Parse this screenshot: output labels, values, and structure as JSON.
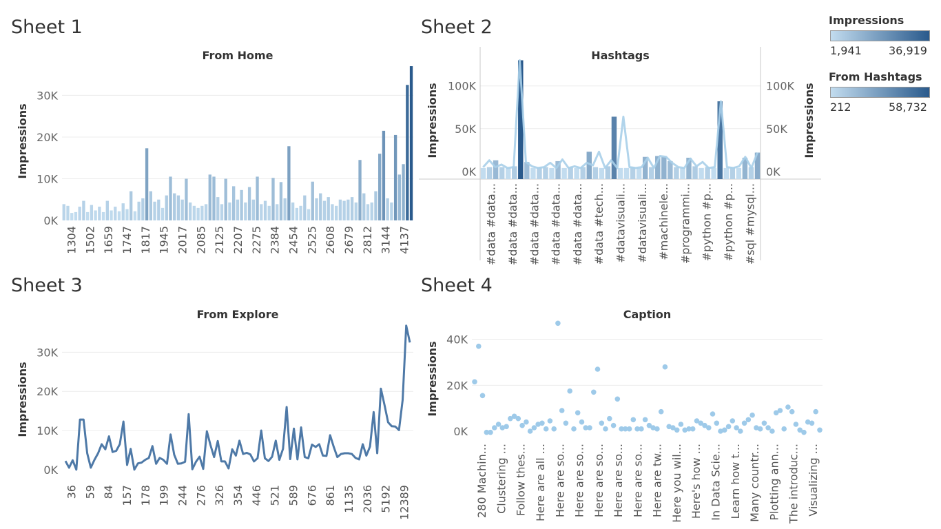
{
  "sheets": [
    {
      "title": "Sheet 1"
    },
    {
      "title": "Sheet 2"
    },
    {
      "title": "Sheet 3"
    },
    {
      "title": "Sheet 4"
    }
  ],
  "legends": [
    {
      "title": "Impressions",
      "min": "1,941",
      "max": "36,919",
      "color_low": "#c2dcef",
      "color_high": "#2a5a8c"
    },
    {
      "title": "From Hashtags",
      "min": "212",
      "max": "58,732",
      "color_low": "#c2dcef",
      "color_high": "#2a5a8c"
    }
  ],
  "chart_data": [
    {
      "type": "bar",
      "title": "From Home",
      "ylabel": "Impressions",
      "ylim": [
        0,
        38000
      ],
      "yticks": [
        {
          "v": 0,
          "label": "0K"
        },
        {
          "v": 10000,
          "label": "10K"
        },
        {
          "v": 20000,
          "label": "20K"
        },
        {
          "v": 30000,
          "label": "30K"
        }
      ],
      "tick_labels": [
        "1304",
        "1502",
        "1659",
        "1747",
        "1817",
        "1945",
        "2017",
        "2085",
        "2125",
        "2207",
        "2275",
        "2384",
        "2454",
        "2525",
        "2608",
        "2679",
        "2812",
        "3144",
        "4137"
      ],
      "values": [
        3900,
        3500,
        1800,
        2000,
        3300,
        4700,
        2000,
        3700,
        2400,
        3300,
        2000,
        4700,
        2400,
        3300,
        2200,
        4100,
        2700,
        7000,
        2200,
        4500,
        5300,
        17300,
        7000,
        4500,
        5000,
        3000,
        6000,
        10500,
        6500,
        6000,
        5000,
        10000,
        4300,
        3500,
        3000,
        3500,
        3900,
        11000,
        10500,
        5600,
        3900,
        10000,
        4300,
        8200,
        5000,
        7300,
        4300,
        8000,
        5000,
        10500,
        3900,
        4700,
        3500,
        10200,
        3900,
        9200,
        5300,
        17800,
        4300,
        3000,
        3500,
        6000,
        2700,
        9300,
        5300,
        6500,
        4700,
        5600,
        3900,
        3500,
        5000,
        4700,
        5000,
        5600,
        4300,
        14500,
        6500,
        3900,
        4300,
        7000,
        16000,
        21500,
        5300,
        4300,
        20500,
        11000,
        13500,
        32500,
        37000
      ],
      "colors": "impressions"
    },
    {
      "type": "bar+line",
      "title": "Hashtags",
      "ylabel": "Impressions",
      "ylabel_right": "Impressions",
      "ylim": [
        -9000,
        128000
      ],
      "yticks": [
        {
          "v": 0,
          "label": "0K"
        },
        {
          "v": 50000,
          "label": "50K"
        },
        {
          "v": 100000,
          "label": "100K"
        }
      ],
      "tick_labels": [
        "#data #data...",
        "#data #data...",
        "#data #data...",
        "#data #data...",
        "#data #data...",
        "#data #tech...",
        "#datavisuali...",
        "#datavisuali...",
        "#machinele...",
        "#programmi...",
        "#python #p...",
        "#python #p...",
        "#sql #mysql..."
      ],
      "bars": [
        4000,
        5000,
        13000,
        5000,
        4000,
        6000,
        130000,
        11000,
        4000,
        5000,
        5000,
        4000,
        12000,
        4000,
        5000,
        4000,
        5000,
        23000,
        5000,
        4000,
        6000,
        64000,
        4000,
        4000,
        5000,
        4000,
        17000,
        5000,
        18000,
        17000,
        12000,
        5000,
        4000,
        16000,
        6000,
        4000,
        5000,
        4000,
        82000,
        4000,
        5000,
        4000,
        16000,
        5000,
        22000
      ],
      "line": [
        5000,
        13000,
        5000,
        8000,
        4000,
        5000,
        130000,
        11000,
        6000,
        4000,
        5000,
        10000,
        4000,
        14000,
        4000,
        6000,
        4000,
        10000,
        7000,
        23000,
        4000,
        13000,
        4000,
        64000,
        5000,
        4000,
        5000,
        16000,
        4000,
        18000,
        17000,
        10000,
        5000,
        4000,
        15000,
        6000,
        11000,
        4000,
        5000,
        82000,
        5000,
        4000,
        6000,
        17000,
        4000,
        22000
      ],
      "colors": "hashtags"
    },
    {
      "type": "line",
      "title": "From Explore",
      "ylabel": "Impressions",
      "ylim": [
        -2500,
        38000
      ],
      "yticks": [
        {
          "v": 0,
          "label": "0K"
        },
        {
          "v": 10000,
          "label": "10K"
        },
        {
          "v": 20000,
          "label": "20K"
        },
        {
          "v": 30000,
          "label": "30K"
        }
      ],
      "tick_labels": [
        "36",
        "59",
        "84",
        "157",
        "178",
        "199",
        "244",
        "276",
        "326",
        "354",
        "446",
        "521",
        "589",
        "676",
        "861",
        "1135",
        "2036",
        "5192",
        "12389"
      ],
      "values": [
        2200,
        500,
        2400,
        0,
        12800,
        12800,
        4200,
        500,
        2500,
        4200,
        6500,
        5200,
        8500,
        4500,
        4800,
        6500,
        12300,
        1200,
        5300,
        0,
        1600,
        1800,
        2500,
        3000,
        6000,
        1500,
        3000,
        2500,
        1500,
        9000,
        3800,
        1500,
        1600,
        2000,
        14200,
        100,
        2000,
        3300,
        200,
        9800,
        6300,
        3200,
        7300,
        2100,
        2100,
        300,
        5200,
        3600,
        7400,
        4000,
        4300,
        3900,
        2100,
        2900,
        10000,
        2900,
        2200,
        3300,
        7400,
        2500,
        5300,
        16000,
        2700,
        10500,
        2600,
        10800,
        3200,
        2900,
        6400,
        5800,
        6500,
        3600,
        3500,
        8800,
        5800,
        3200,
        4000,
        4200,
        4200,
        4000,
        3000,
        2600,
        6500,
        3600,
        5900,
        14700,
        4200,
        20700,
        16500,
        12100,
        11100,
        11000,
        10100,
        17800,
        36800,
        32500
      ],
      "colors": "line"
    },
    {
      "type": "scatter",
      "title": "Caption",
      "ylabel": "Impressions",
      "ylim": [
        -3000,
        48000
      ],
      "yticks": [
        {
          "v": 0,
          "label": "0K"
        },
        {
          "v": 20000,
          "label": "20K"
        },
        {
          "v": 40000,
          "label": "40K"
        }
      ],
      "tick_labels": [
        "280 Machin...",
        "Clustering ...",
        "Follow thes...",
        "Here are all ...",
        "Here are so...",
        "Here are so...",
        "Here are so...",
        "Here are so...",
        "Here are so...",
        "Here are tw...",
        "Here you wil...",
        "Here's how ...",
        "In Data Scie...",
        "Learn how t...",
        "Many countr...",
        "Plotting ann...",
        "The introduc...",
        "Visualizing ..."
      ],
      "values": [
        21500,
        37000,
        15500,
        -500,
        -500,
        1500,
        3000,
        1500,
        2000,
        5500,
        6500,
        5500,
        2500,
        4000,
        0,
        1500,
        3000,
        3500,
        1000,
        4500,
        1000,
        47000,
        9000,
        3500,
        17500,
        1000,
        8000,
        4000,
        1500,
        1500,
        17000,
        27000,
        3500,
        1000,
        5500,
        2500,
        14000,
        1000,
        1000,
        1000,
        5000,
        1000,
        1000,
        5000,
        2500,
        1500,
        1000,
        8500,
        28000,
        2000,
        1500,
        500,
        3000,
        500,
        1000,
        1000,
        4500,
        3500,
        2500,
        1500,
        7500,
        3500,
        0,
        500,
        2000,
        4500,
        1500,
        0,
        3500,
        5000,
        7000,
        1500,
        1000,
        3500,
        1500,
        0,
        8000,
        9000,
        1000,
        10500,
        8500,
        3000,
        500,
        -500,
        4000,
        3500,
        8500,
        500
      ],
      "colors": "scatter"
    }
  ]
}
